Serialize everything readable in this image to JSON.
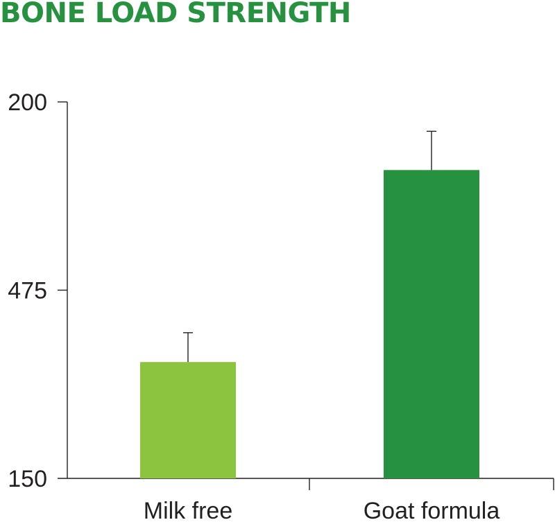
{
  "chart_data": {
    "type": "bar",
    "title": "BONE LOAD STRENGTH",
    "xlabel": "",
    "ylabel": "",
    "categories": [
      "Milk free",
      "Goat formula"
    ],
    "values": [
      30.9,
      81.9
    ],
    "error_plus": [
      7.8,
      10.3
    ],
    "bar_colors": [
      "#8cc43f",
      "#26913f"
    ],
    "y_ticks": [
      {
        "label": "150",
        "level": 0
      },
      {
        "label": "475",
        "level": 50
      },
      {
        "label": "200",
        "level": 100
      }
    ],
    "ylim": [
      0,
      100
    ],
    "grid": false,
    "legend": "none",
    "colors": {
      "title": "#26913f",
      "axis": "#231f20",
      "text": "#231f20"
    }
  }
}
